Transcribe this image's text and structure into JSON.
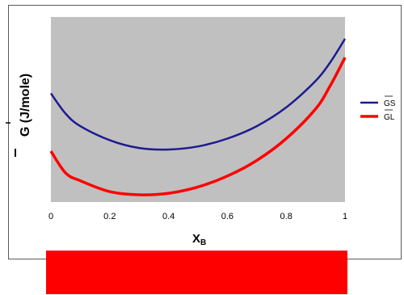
{
  "chart_data": {
    "type": "line",
    "title": "",
    "xlabel": "X",
    "xlabel_subscript": "B",
    "ylabel": "G (J/mole)",
    "ylabel_overbar": true,
    "xlim": [
      0,
      1
    ],
    "x_ticks": [
      "0",
      "0.2",
      "0.4",
      "0.6",
      "0.8",
      "1"
    ],
    "x_tick_values": [
      0,
      0.2,
      0.4,
      0.6,
      0.8,
      1
    ],
    "y_ticks_shown": false,
    "y_range": [
      0,
      100
    ],
    "y_units_note": "relative (no y tick labels shown)",
    "grid": false,
    "plot_background": "#c0c0c0",
    "legend": {
      "position": "right",
      "entries": [
        {
          "name": "GS",
          "overbar": true,
          "color": "#1f1a8f"
        },
        {
          "name": "GL",
          "overbar": true,
          "color": "#ff0000"
        }
      ]
    },
    "series": [
      {
        "name": "GS",
        "color": "#1f1a8f",
        "x": [
          0,
          0.05,
          0.1,
          0.2,
          0.3,
          0.4,
          0.5,
          0.6,
          0.7,
          0.8,
          0.9,
          0.95,
          1
        ],
        "y": [
          65,
          52,
          44,
          35,
          30,
          29,
          31,
          36,
          44,
          56,
          73,
          85,
          100
        ]
      },
      {
        "name": "GL",
        "color": "#ff0000",
        "x": [
          0,
          0.05,
          0.1,
          0.2,
          0.3,
          0.4,
          0.5,
          0.6,
          0.7,
          0.8,
          0.9,
          0.95,
          1
        ],
        "y": [
          28,
          14,
          9,
          2,
          0,
          1,
          5,
          12,
          22,
          36,
          55,
          70,
          88
        ]
      }
    ]
  },
  "bottom_bar": {
    "color": "#ff0000"
  }
}
